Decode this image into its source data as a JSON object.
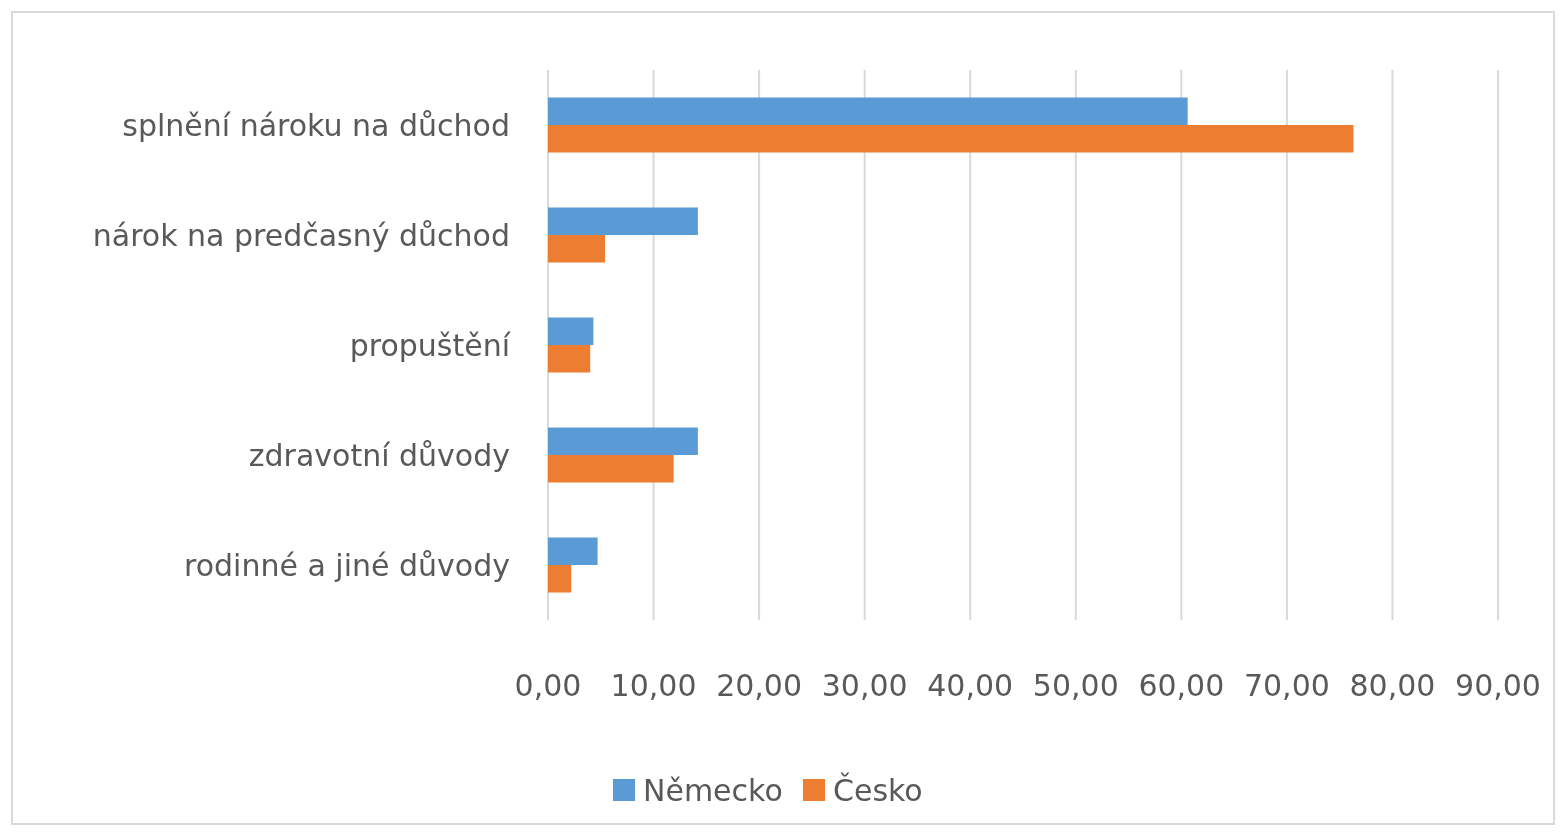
{
  "chart_data": {
    "type": "bar",
    "orientation": "horizontal",
    "categories": [
      "splnění nároku na důchod",
      "nárok na predčasný důchod",
      "propuštění",
      "zdravotní důvody",
      "rodinné a jiné důvody"
    ],
    "series": [
      {
        "name": "Německo",
        "color": "#5b9bd5",
        "values": [
          60.6,
          14.2,
          4.3,
          14.2,
          4.7
        ]
      },
      {
        "name": "Česko",
        "color": "#ed7d31",
        "values": [
          76.3,
          5.4,
          4.0,
          11.9,
          2.2
        ]
      }
    ],
    "xlim": [
      0,
      90
    ],
    "xticks": [
      {
        "value": 0,
        "label": "0,00"
      },
      {
        "value": 10,
        "label": "10,00"
      },
      {
        "value": 20,
        "label": "20,00"
      },
      {
        "value": 30,
        "label": "30,00"
      },
      {
        "value": 40,
        "label": "40,00"
      },
      {
        "value": 50,
        "label": "50,00"
      },
      {
        "value": 60,
        "label": "60,00"
      },
      {
        "value": 70,
        "label": "70,00"
      },
      {
        "value": 80,
        "label": "80,00"
      },
      {
        "value": 90,
        "label": "90,00"
      }
    ],
    "grid": "x",
    "legend": "bottom"
  }
}
